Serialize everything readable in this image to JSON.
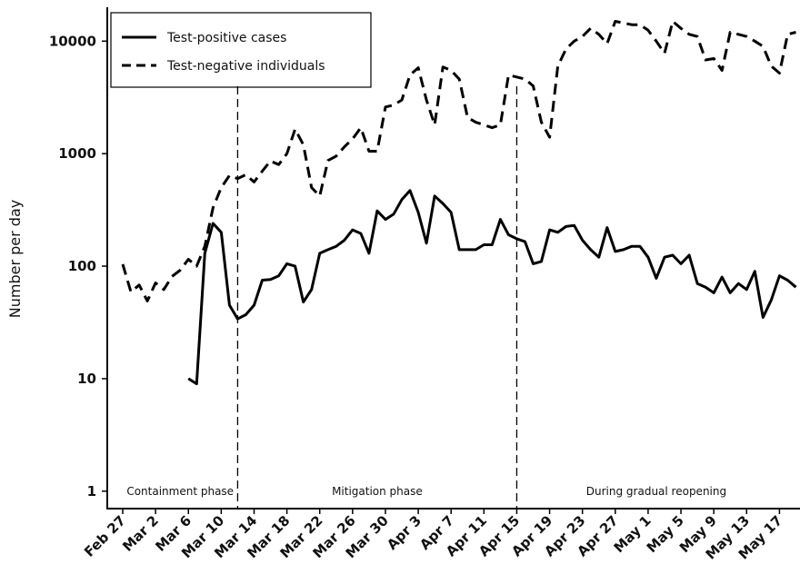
{
  "chart_data": {
    "type": "line",
    "y_label": "Number per day",
    "log_y": true,
    "ylim": [
      0.7,
      20000
    ],
    "yticks": [
      1,
      10,
      100,
      1000,
      10000
    ],
    "legend": "top-left",
    "categories": [
      "Feb 27",
      null,
      null,
      null,
      "Mar 2",
      null,
      null,
      null,
      "Mar 6",
      null,
      null,
      null,
      "Mar 10",
      null,
      null,
      null,
      "Mar 14",
      null,
      null,
      null,
      "Mar 18",
      null,
      null,
      null,
      "Mar 22",
      null,
      null,
      null,
      "Mar 26",
      null,
      null,
      null,
      "Mar 30",
      null,
      null,
      null,
      "Apr 3",
      null,
      null,
      null,
      "Apr 7",
      null,
      null,
      null,
      "Apr 11",
      null,
      null,
      null,
      "Apr 15",
      null,
      null,
      null,
      "Apr 19",
      null,
      null,
      null,
      "Apr 23",
      null,
      null,
      null,
      "Apr 27",
      null,
      null,
      null,
      "May 1",
      null,
      null,
      null,
      "May 5",
      null,
      null,
      null,
      "May 9",
      null,
      null,
      null,
      "May 13",
      null,
      null,
      null,
      "May 17",
      null,
      null
    ],
    "series": [
      {
        "name": "Test-positive cases",
        "color": "#000000",
        "dash": "solid",
        "values": [
          null,
          null,
          null,
          null,
          null,
          null,
          null,
          null,
          10,
          9,
          130,
          240,
          200,
          45,
          34,
          37,
          45,
          75,
          76,
          82,
          105,
          100,
          48,
          62,
          130,
          140,
          150,
          170,
          210,
          195,
          130,
          310,
          260,
          290,
          390,
          470,
          300,
          160,
          420,
          360,
          300,
          140,
          140,
          140,
          155,
          155,
          260,
          190,
          175,
          165,
          105,
          110,
          210,
          200,
          225,
          230,
          170,
          140,
          120,
          220,
          135,
          140,
          150,
          150,
          120,
          78,
          120,
          125,
          105,
          125,
          70,
          65,
          58,
          80,
          58,
          70,
          62,
          90,
          35,
          50,
          82,
          75,
          65
        ]
      },
      {
        "name": "Test-negative individuals",
        "color": "#000000",
        "dash": "dashed",
        "values": [
          104,
          59,
          68,
          49,
          71,
          62,
          81,
          92,
          115,
          100,
          150,
          330,
          500,
          640,
          600,
          650,
          560,
          700,
          860,
          800,
          1000,
          1650,
          1200,
          500,
          420,
          870,
          950,
          1150,
          1350,
          1700,
          1050,
          1050,
          2600,
          2700,
          3000,
          5000,
          5800,
          3000,
          1800,
          5900,
          5500,
          4600,
          2100,
          1900,
          1800,
          1700,
          1800,
          5000,
          4800,
          4600,
          4000,
          1900,
          1400,
          6000,
          8500,
          10000,
          11000,
          13000,
          11500,
          9500,
          15000,
          14500,
          14000,
          14000,
          12500,
          10000,
          7800,
          15000,
          13000,
          11500,
          11000,
          6800,
          7000,
          5500,
          12000,
          11500,
          11000,
          10000,
          9000,
          6000,
          5200,
          11500,
          12000
        ]
      }
    ],
    "phases": [
      {
        "label": "Containment phase",
        "start": 0,
        "end": 14
      },
      {
        "label": "Mitigation phase",
        "start": 14,
        "end": 48
      },
      {
        "label": "During gradual reopening",
        "start": 48,
        "end": 82
      }
    ]
  }
}
